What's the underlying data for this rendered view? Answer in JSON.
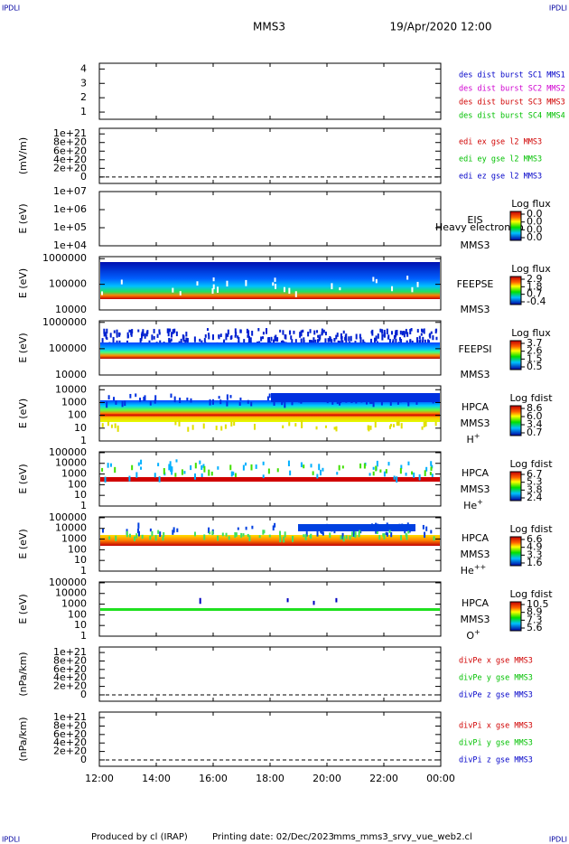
{
  "header": {
    "corner_left": "IPDLI",
    "corner_right": "IPDLI",
    "corner_bottom_left": "IPDLI",
    "corner_bottom_right": "IPDLI",
    "spacecraft": "MMS3",
    "date": "19/Apr/2020 12:00"
  },
  "footer": {
    "produced": "Produced by cl (IRAP)",
    "printed": "Printing date: 02/Dec/2023",
    "file": "mms_mms3_srvy_vue_web2.cl"
  },
  "chart_data": [
    {
      "type": "line",
      "ylim": [
        0.5,
        4.4
      ],
      "yticks": [
        1,
        2,
        3,
        4
      ],
      "legend": [
        {
          "name": "des dist burst SC1 MMS1",
          "color": "#0000c8"
        },
        {
          "name": "des dist burst SC2 MMS2",
          "color": "#d000d0"
        },
        {
          "name": "des dist burst SC3 MMS3",
          "color": "#d00000"
        },
        {
          "name": "des dist burst SC4 MMS4",
          "color": "#00c000"
        }
      ]
    },
    {
      "type": "line",
      "ylabel": "(mV/m)",
      "ylim": [
        -1.5e+20,
        1.13e+21
      ],
      "yticks": [
        0,
        {
          "value": 2e+20,
          "label": "2e+20"
        },
        {
          "value": 4e+20,
          "label": "4e+20"
        },
        {
          "value": 6e+20,
          "label": "6e+20"
        },
        {
          "value": 8e+20,
          "label": "8e+20"
        },
        {
          "value": 1e+21,
          "label": "1e+21"
        }
      ],
      "legend": [
        {
          "name": "edi ex gse l2 MMS3",
          "color": "#d00000"
        },
        {
          "name": "edi ey gse l2 MMS3",
          "color": "#00c000"
        },
        {
          "name": "edi ez gse l2 MMS3",
          "color": "#0000c8"
        }
      ]
    },
    {
      "type": "spectrogram",
      "ylabel": "E (eV)",
      "log": true,
      "ylim": [
        10000,
        10000000
      ],
      "yticks": [
        {
          "value": 10000,
          "label": "1e+04"
        },
        {
          "value": 100000,
          "label": "1e+05"
        },
        {
          "value": 1000000,
          "label": "1e+06"
        },
        {
          "value": 10000000,
          "label": "1e+07"
        }
      ],
      "labels": [
        "EIS",
        "MMS3"
      ],
      "overlay": "Heavy electron to",
      "colorbar": {
        "title": "Log flux",
        "labels": [
          "0.0",
          "0.0",
          "0.0",
          "0.0"
        ]
      }
    },
    {
      "type": "spectrogram",
      "ylabel": "E (eV)",
      "log": true,
      "ylim": [
        10000,
        1200000
      ],
      "yticks": [
        10000,
        100000,
        1000000
      ],
      "labels": [
        "FEEPSE",
        "MMS3"
      ],
      "colorbar": {
        "title": "Log flux",
        "labels": [
          "2.9",
          "1.8",
          "0.7",
          "-0.4"
        ]
      }
    },
    {
      "type": "spectrogram",
      "ylabel": "E (eV)",
      "log": true,
      "ylim": [
        10000,
        1150000
      ],
      "yticks": [
        10000,
        100000,
        1000000
      ],
      "labels": [
        "FEEPSI",
        "MMS3"
      ],
      "colorbar": {
        "title": "Log flux",
        "labels": [
          "3.7",
          "2.6",
          "1.5",
          "0.5"
        ]
      }
    },
    {
      "type": "spectrogram",
      "ylabel": "E (eV)",
      "log": true,
      "ylim": [
        1,
        20000
      ],
      "yticks": [
        1,
        10,
        100,
        1000,
        10000
      ],
      "labels": [
        "HPCA",
        "MMS3"
      ],
      "species": {
        "base": "H",
        "sup": "+"
      },
      "colorbar": {
        "title": "Log fdist",
        "labels": [
          "8.6",
          "6.0",
          "3.4",
          "0.7"
        ]
      }
    },
    {
      "type": "spectrogram",
      "ylabel": "E (eV)",
      "log": true,
      "ylim": [
        1,
        120000
      ],
      "yticks": [
        1,
        10,
        100,
        1000,
        10000,
        100000
      ],
      "labels": [
        "HPCA",
        "MMS3"
      ],
      "species": {
        "base": "He",
        "sup": "+"
      },
      "colorbar": {
        "title": "Log fdist",
        "labels": [
          "6.7",
          "5.3",
          "3.8",
          "2.4"
        ]
      }
    },
    {
      "type": "spectrogram",
      "ylabel": "E (eV)",
      "log": true,
      "ylim": [
        1,
        120000
      ],
      "yticks": [
        1,
        10,
        100,
        1000,
        10000,
        100000
      ],
      "labels": [
        "HPCA",
        "MMS3"
      ],
      "species": {
        "base": "He",
        "sup": "++"
      },
      "colorbar": {
        "title": "Log fdist",
        "labels": [
          "6.6",
          "4.9",
          "3.3",
          "1.6"
        ]
      }
    },
    {
      "type": "spectrogram",
      "ylabel": "E (eV)",
      "log": true,
      "ylim": [
        1,
        120000
      ],
      "yticks": [
        1,
        10,
        100,
        1000,
        10000,
        100000
      ],
      "labels": [
        "HPCA",
        "MMS3"
      ],
      "species": {
        "base": "O",
        "sup": "+"
      },
      "colorbar": {
        "title": "Log fdist",
        "labels": [
          "10.5",
          "8.9",
          "7.3",
          "5.6"
        ]
      }
    },
    {
      "type": "line",
      "ylabel": "(nPa/km)",
      "ylim": [
        -1.5e+20,
        1.13e+21
      ],
      "yticks": [
        0,
        {
          "value": 2e+20,
          "label": "2e+20"
        },
        {
          "value": 4e+20,
          "label": "4e+20"
        },
        {
          "value": 6e+20,
          "label": "6e+20"
        },
        {
          "value": 8e+20,
          "label": "8e+20"
        },
        {
          "value": 1e+21,
          "label": "1e+21"
        }
      ],
      "legend": [
        {
          "name": "divPe x gse MMS3",
          "color": "#d00000"
        },
        {
          "name": "divPe y gse MMS3",
          "color": "#00c000"
        },
        {
          "name": "divPe z gse MMS3",
          "color": "#0000c8"
        }
      ]
    },
    {
      "type": "line",
      "ylabel": "(nPa/km)",
      "ylim": [
        -1.5e+20,
        1.13e+21
      ],
      "yticks": [
        0,
        {
          "value": 2e+20,
          "label": "2e+20"
        },
        {
          "value": 4e+20,
          "label": "4e+20"
        },
        {
          "value": 6e+20,
          "label": "6e+20"
        },
        {
          "value": 8e+20,
          "label": "8e+20"
        },
        {
          "value": 1e+21,
          "label": "1e+21"
        }
      ],
      "legend": [
        {
          "name": "divPi x gse MMS3",
          "color": "#d00000"
        },
        {
          "name": "divPi y gse MMS3",
          "color": "#00c000"
        },
        {
          "name": "divPi z gse MMS3",
          "color": "#0000c8"
        }
      ],
      "xlim": [
        12,
        24
      ],
      "xticks": [
        {
          "value": 12,
          "label": "12:00"
        },
        {
          "value": 14,
          "label": "14:00"
        },
        {
          "value": 16,
          "label": "16:00"
        },
        {
          "value": 18,
          "label": "18:00"
        },
        {
          "value": 20,
          "label": "20:00"
        },
        {
          "value": 22,
          "label": "22:00"
        },
        {
          "value": 24,
          "label": "00:00"
        }
      ]
    }
  ]
}
